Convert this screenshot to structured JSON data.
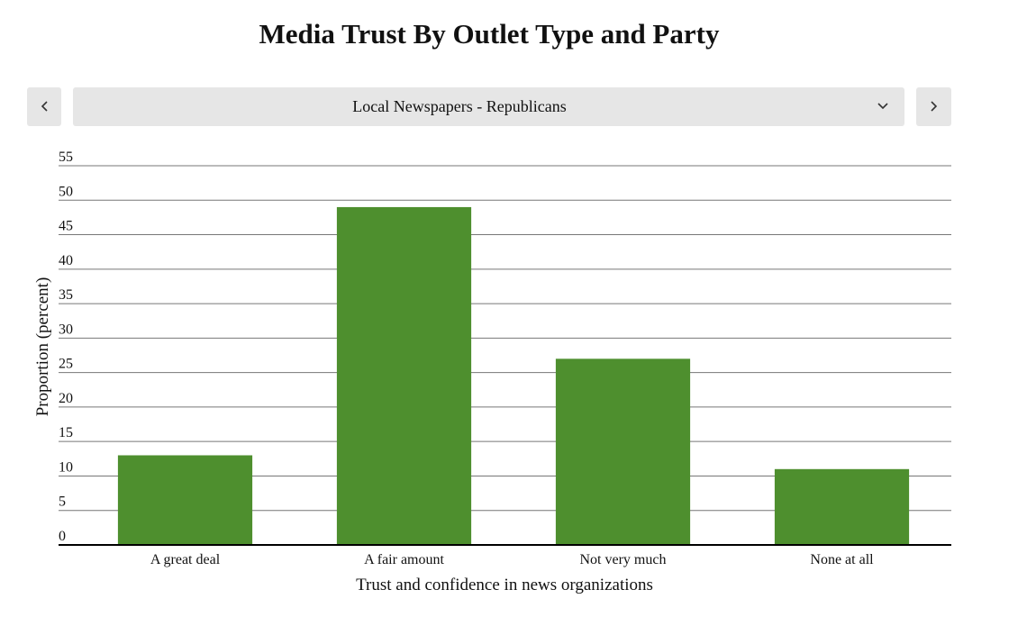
{
  "ui": {
    "selector": "Local Newspapers - Republicans"
  },
  "chart_data": {
    "type": "bar",
    "title": "Media Trust By Outlet Type and Party",
    "x_label": "Trust and confidence in news organizations",
    "y_label": "Proportion (percent)",
    "categories": [
      "A great deal",
      "A fair amount",
      "Not very much",
      "None at all"
    ],
    "values": [
      13,
      49,
      27,
      11
    ],
    "color": "#4e8f2e",
    "ylim": [
      0,
      55
    ],
    "yticks": [
      0,
      5,
      10,
      15,
      20,
      25,
      30,
      35,
      40,
      45,
      50,
      55
    ],
    "grid": true
  }
}
